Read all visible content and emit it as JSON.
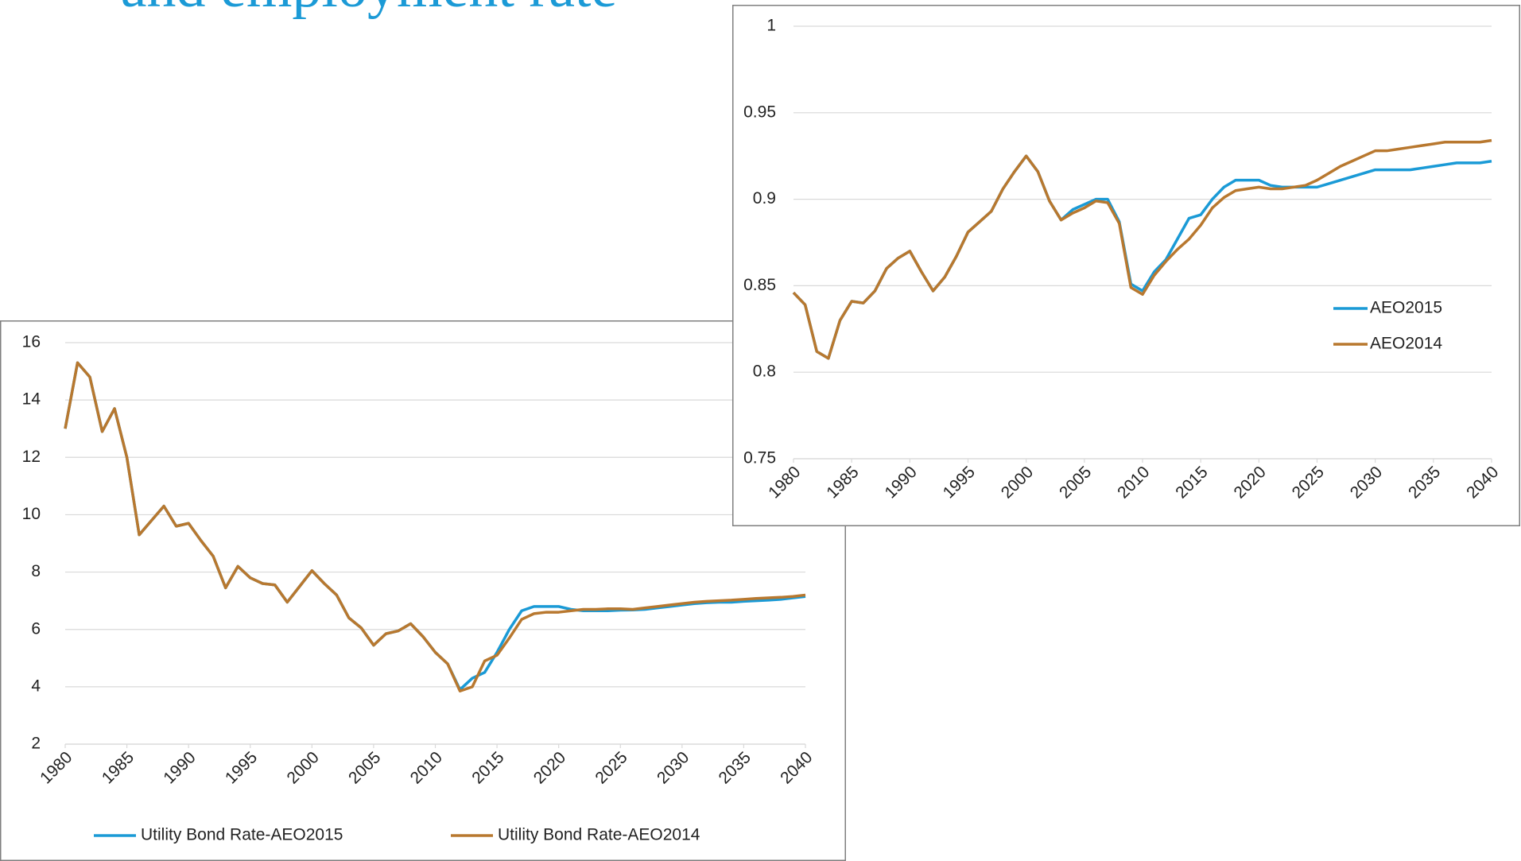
{
  "heading": "and employment rate",
  "chart_data": [
    {
      "type": "line",
      "x": [
        1980,
        1981,
        1982,
        1983,
        1984,
        1985,
        1986,
        1987,
        1988,
        1989,
        1990,
        1991,
        1992,
        1993,
        1994,
        1995,
        1996,
        1997,
        1998,
        1999,
        2000,
        2001,
        2002,
        2003,
        2004,
        2005,
        2006,
        2007,
        2008,
        2009,
        2010,
        2011,
        2012,
        2013,
        2014,
        2015,
        2016,
        2017,
        2018,
        2019,
        2020,
        2021,
        2022,
        2023,
        2024,
        2025,
        2026,
        2027,
        2028,
        2029,
        2030,
        2031,
        2032,
        2033,
        2034,
        2035,
        2036,
        2037,
        2038,
        2039,
        2040
      ],
      "series": [
        {
          "name": "Utility Bond Rate-AEO2015",
          "color": "#1a9ad6",
          "values": [
            13.0,
            15.3,
            14.8,
            12.9,
            13.7,
            12.0,
            9.3,
            9.8,
            10.3,
            9.6,
            9.7,
            9.1,
            8.55,
            7.45,
            8.2,
            7.8,
            7.6,
            7.55,
            6.95,
            7.5,
            8.05,
            7.6,
            7.2,
            6.4,
            6.05,
            5.45,
            5.85,
            5.95,
            6.2,
            5.75,
            5.2,
            4.8,
            3.9,
            4.3,
            4.5,
            5.2,
            6.0,
            6.65,
            6.8,
            6.8,
            6.8,
            6.7,
            6.65,
            6.65,
            6.65,
            6.67,
            6.68,
            6.7,
            6.75,
            6.8,
            6.85,
            6.9,
            6.93,
            6.95,
            6.95,
            6.98,
            7.0,
            7.02,
            7.05,
            7.1,
            7.15
          ]
        },
        {
          "name": "Utility Bond Rate-AEO2014",
          "color": "#b8782f",
          "values": [
            13.0,
            15.3,
            14.8,
            12.9,
            13.7,
            12.0,
            9.3,
            9.8,
            10.3,
            9.6,
            9.7,
            9.1,
            8.55,
            7.45,
            8.2,
            7.8,
            7.6,
            7.55,
            6.95,
            7.5,
            8.05,
            7.6,
            7.2,
            6.4,
            6.05,
            5.45,
            5.85,
            5.95,
            6.2,
            5.75,
            5.2,
            4.8,
            3.85,
            4.0,
            4.9,
            5.1,
            5.7,
            6.35,
            6.55,
            6.6,
            6.6,
            6.65,
            6.7,
            6.7,
            6.72,
            6.72,
            6.7,
            6.75,
            6.8,
            6.85,
            6.9,
            6.95,
            6.98,
            7.0,
            7.02,
            7.05,
            7.08,
            7.1,
            7.12,
            7.15,
            7.2
          ]
        }
      ],
      "xlim": [
        1980,
        2040
      ],
      "xticks": [
        1980,
        1985,
        1990,
        1995,
        2000,
        2005,
        2010,
        2015,
        2020,
        2025,
        2030,
        2035,
        2040
      ],
      "ylim": [
        2,
        16
      ],
      "yticks": [
        2,
        4,
        6,
        8,
        10,
        12,
        14,
        16
      ],
      "grid": true
    },
    {
      "type": "line",
      "x": [
        1980,
        1981,
        1982,
        1983,
        1984,
        1985,
        1986,
        1987,
        1988,
        1989,
        1990,
        1991,
        1992,
        1993,
        1994,
        1995,
        1996,
        1997,
        1998,
        1999,
        2000,
        2001,
        2002,
        2003,
        2004,
        2005,
        2006,
        2007,
        2008,
        2009,
        2010,
        2011,
        2012,
        2013,
        2014,
        2015,
        2016,
        2017,
        2018,
        2019,
        2020,
        2021,
        2022,
        2023,
        2024,
        2025,
        2026,
        2027,
        2028,
        2029,
        2030,
        2031,
        2032,
        2033,
        2034,
        2035,
        2036,
        2037,
        2038,
        2039,
        2040
      ],
      "series": [
        {
          "name": "AEO2015",
          "color": "#1a9ad6",
          "values": [
            0.846,
            0.839,
            0.812,
            0.808,
            0.83,
            0.841,
            0.84,
            0.847,
            0.86,
            0.866,
            0.87,
            0.858,
            0.847,
            0.855,
            0.867,
            0.881,
            0.887,
            0.893,
            0.906,
            0.916,
            0.925,
            0.916,
            0.899,
            0.888,
            0.894,
            0.897,
            0.9,
            0.9,
            0.887,
            0.851,
            0.847,
            0.858,
            0.865,
            0.877,
            0.889,
            0.891,
            0.9,
            0.907,
            0.911,
            0.911,
            0.911,
            0.908,
            0.907,
            0.907,
            0.907,
            0.907,
            0.909,
            0.911,
            0.913,
            0.915,
            0.917,
            0.917,
            0.917,
            0.917,
            0.918,
            0.919,
            0.92,
            0.921,
            0.921,
            0.921,
            0.922
          ]
        },
        {
          "name": "AEO2014",
          "color": "#b8782f",
          "values": [
            0.846,
            0.839,
            0.812,
            0.808,
            0.83,
            0.841,
            0.84,
            0.847,
            0.86,
            0.866,
            0.87,
            0.858,
            0.847,
            0.855,
            0.867,
            0.881,
            0.887,
            0.893,
            0.906,
            0.916,
            0.925,
            0.916,
            0.899,
            0.888,
            0.892,
            0.895,
            0.899,
            0.898,
            0.886,
            0.849,
            0.845,
            0.856,
            0.864,
            0.871,
            0.877,
            0.885,
            0.895,
            0.901,
            0.905,
            0.906,
            0.907,
            0.906,
            0.906,
            0.907,
            0.908,
            0.911,
            0.915,
            0.919,
            0.922,
            0.925,
            0.928,
            0.928,
            0.929,
            0.93,
            0.931,
            0.932,
            0.933,
            0.933,
            0.933,
            0.933,
            0.934
          ]
        }
      ],
      "xlim": [
        1980,
        2040
      ],
      "xticks": [
        1980,
        1985,
        1990,
        1995,
        2000,
        2005,
        2010,
        2015,
        2020,
        2025,
        2030,
        2035,
        2040
      ],
      "ylim": [
        0.75,
        1
      ],
      "yticks": [
        0.75,
        0.8,
        0.85,
        0.9,
        0.95,
        1
      ],
      "grid": true
    }
  ]
}
